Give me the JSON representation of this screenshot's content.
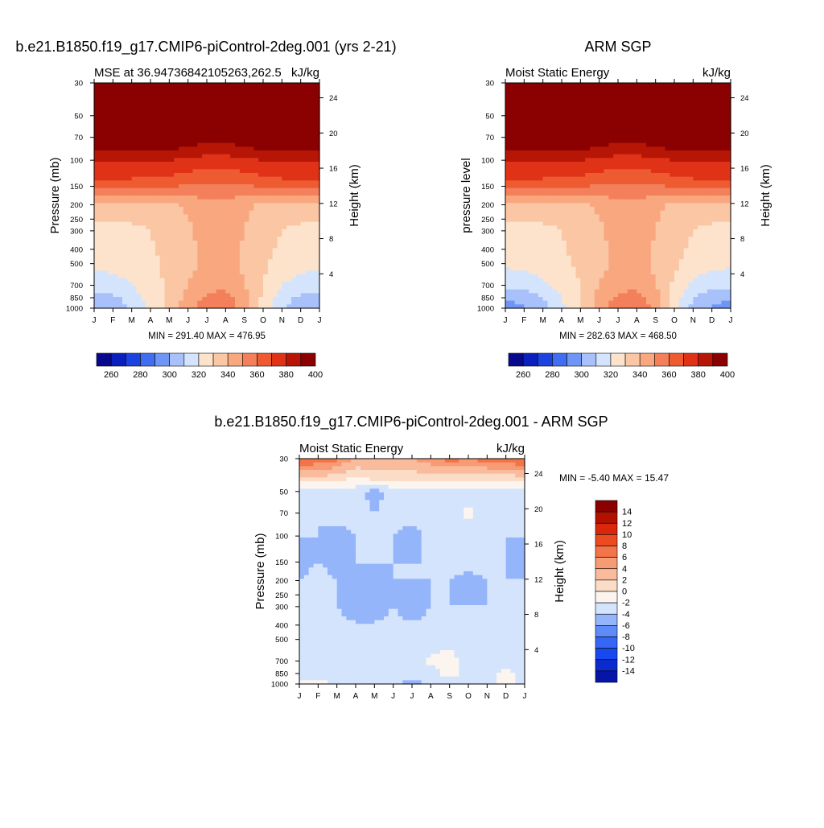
{
  "chart_data": [
    {
      "type": "heatmap",
      "panel": "model",
      "title": "b.e21.B1850.f19_g17.CMIP6-piControl-2deg.001 (yrs 2-21)",
      "left_string": "MSE at 36.94736842105263,262.5",
      "right_string": "kJ/kg",
      "xlabel": "",
      "ylabel": "Pressure (mb)",
      "y2label": "Height (km)",
      "x_ticks": [
        "J",
        "F",
        "M",
        "A",
        "M",
        "J",
        "J",
        "A",
        "S",
        "O",
        "N",
        "D",
        "J"
      ],
      "y_ticks": [
        "30",
        "50",
        "70",
        "100",
        "150",
        "200",
        "250",
        "300",
        "400",
        "500",
        "700",
        "850",
        "1000"
      ],
      "y_values_mb": [
        30,
        50,
        70,
        100,
        150,
        200,
        250,
        300,
        400,
        500,
        700,
        850,
        1000
      ],
      "y2_ticks": [
        "24",
        "20",
        "16",
        "12",
        "8",
        "4"
      ],
      "stats": "MIN = 291.40 MAX = 476.95",
      "contour_levels": [
        250,
        260,
        270,
        280,
        290,
        300,
        310,
        320,
        330,
        340,
        350,
        360,
        370,
        380,
        390,
        400
      ],
      "colorbar_labels": [
        "260",
        "280",
        "300",
        "320",
        "340",
        "360",
        "380",
        "400"
      ],
      "grid_months": [
        "J",
        "F",
        "M",
        "A",
        "M",
        "J",
        "J",
        "A",
        "S",
        "O",
        "N",
        "D",
        "J"
      ],
      "grid_levels_mb": [
        30,
        60,
        80,
        100,
        130,
        160,
        200,
        300,
        500,
        700,
        850,
        1000
      ],
      "values": [
        [
          410,
          410,
          410,
          410,
          410,
          410,
          410,
          410,
          410,
          410,
          410,
          410,
          410
        ],
        [
          400,
          400,
          400,
          400,
          400,
          395,
          395,
          395,
          395,
          400,
          400,
          400,
          400
        ],
        [
          385,
          385,
          385,
          385,
          385,
          380,
          378,
          378,
          380,
          385,
          385,
          385,
          385
        ],
        [
          372,
          372,
          372,
          370,
          370,
          368,
          366,
          366,
          368,
          370,
          372,
          372,
          372
        ],
        [
          362,
          362,
          362,
          360,
          360,
          356,
          355,
          355,
          356,
          360,
          362,
          362,
          362
        ],
        [
          346,
          346,
          346,
          346,
          346,
          346,
          346,
          346,
          346,
          346,
          346,
          346,
          346
        ],
        [
          325,
          325,
          325,
          325,
          328,
          332,
          336,
          336,
          332,
          328,
          325,
          325,
          325
        ],
        [
          318,
          318,
          318,
          320,
          324,
          328,
          334,
          335,
          330,
          325,
          320,
          318,
          318
        ],
        [
          312,
          313,
          315,
          318,
          322,
          327,
          333,
          334,
          328,
          322,
          316,
          313,
          312
        ],
        [
          305,
          306,
          310,
          316,
          322,
          330,
          336,
          338,
          330,
          320,
          310,
          306,
          305
        ],
        [
          296,
          298,
          304,
          314,
          322,
          334,
          342,
          344,
          334,
          318,
          304,
          298,
          296
        ],
        [
          293,
          295,
          302,
          312,
          322,
          336,
          345,
          346,
          336,
          316,
          300,
          295,
          293
        ]
      ]
    },
    {
      "type": "heatmap",
      "panel": "obs",
      "title": "ARM SGP",
      "left_string": "Moist Static Energy",
      "right_string": "kJ/kg",
      "xlabel": "",
      "ylabel": "pressure level",
      "y2label": "Height (km)",
      "x_ticks": [
        "J",
        "F",
        "M",
        "A",
        "M",
        "J",
        "J",
        "A",
        "S",
        "O",
        "N",
        "D",
        "J"
      ],
      "y_ticks": [
        "30",
        "50",
        "70",
        "100",
        "150",
        "200",
        "250",
        "300",
        "400",
        "500",
        "700",
        "850",
        "1000"
      ],
      "y_values_mb": [
        30,
        50,
        70,
        100,
        150,
        200,
        250,
        300,
        400,
        500,
        700,
        850,
        1000
      ],
      "y2_ticks": [
        "24",
        "20",
        "16",
        "12",
        "8",
        "4"
      ],
      "stats": "MIN = 282.63 MAX = 468.50",
      "contour_levels": [
        250,
        260,
        270,
        280,
        290,
        300,
        310,
        320,
        330,
        340,
        350,
        360,
        370,
        380,
        390,
        400
      ],
      "colorbar_labels": [
        "260",
        "280",
        "300",
        "320",
        "340",
        "360",
        "380",
        "400"
      ],
      "grid_months": [
        "J",
        "F",
        "M",
        "A",
        "M",
        "J",
        "J",
        "A",
        "S",
        "O",
        "N",
        "D",
        "J"
      ],
      "grid_levels_mb": [
        30,
        60,
        80,
        100,
        130,
        160,
        200,
        300,
        500,
        700,
        850,
        1000
      ],
      "values": [
        [
          410,
          410,
          410,
          410,
          410,
          410,
          410,
          410,
          410,
          410,
          410,
          410,
          410
        ],
        [
          400,
          400,
          400,
          400,
          400,
          395,
          395,
          395,
          395,
          400,
          400,
          400,
          400
        ],
        [
          385,
          385,
          385,
          385,
          385,
          380,
          378,
          378,
          380,
          385,
          385,
          385,
          385
        ],
        [
          372,
          372,
          372,
          370,
          370,
          368,
          366,
          366,
          368,
          370,
          372,
          372,
          372
        ],
        [
          362,
          362,
          362,
          360,
          360,
          356,
          355,
          355,
          356,
          360,
          362,
          362,
          362
        ],
        [
          346,
          346,
          346,
          346,
          346,
          346,
          346,
          346,
          346,
          346,
          346,
          346,
          346
        ],
        [
          325,
          325,
          325,
          325,
          328,
          332,
          336,
          336,
          332,
          328,
          325,
          325,
          325
        ],
        [
          318,
          318,
          318,
          320,
          324,
          328,
          334,
          335,
          330,
          325,
          320,
          318,
          318
        ],
        [
          312,
          313,
          315,
          318,
          322,
          327,
          333,
          334,
          328,
          322,
          316,
          313,
          312
        ],
        [
          303,
          304,
          308,
          314,
          320,
          330,
          336,
          338,
          330,
          318,
          308,
          304,
          303
        ],
        [
          292,
          294,
          300,
          310,
          320,
          334,
          342,
          344,
          334,
          316,
          300,
          294,
          292
        ],
        [
          286,
          288,
          296,
          308,
          320,
          336,
          346,
          348,
          338,
          314,
          296,
          288,
          286
        ]
      ]
    },
    {
      "type": "heatmap",
      "panel": "difference",
      "title": "b.e21.B1850.f19_g17.CMIP6-piControl-2deg.001 - ARM SGP",
      "left_string": "Moist Static Energy",
      "right_string": "kJ/kg",
      "xlabel": "",
      "ylabel": "Pressure (mb)",
      "y2label": "Height (km)",
      "x_ticks": [
        "J",
        "F",
        "M",
        "A",
        "M",
        "J",
        "J",
        "A",
        "S",
        "O",
        "N",
        "D",
        "J"
      ],
      "y_ticks": [
        "30",
        "50",
        "70",
        "100",
        "150",
        "200",
        "250",
        "300",
        "400",
        "500",
        "700",
        "850",
        "1000"
      ],
      "y_values_mb": [
        30,
        50,
        70,
        100,
        150,
        200,
        250,
        300,
        400,
        500,
        700,
        850,
        1000
      ],
      "y2_ticks": [
        "24",
        "20",
        "16",
        "12",
        "8",
        "4"
      ],
      "stats": "MIN =  -5.40 MAX =  15.47",
      "contour_levels": [
        -14,
        -12,
        -10,
        -8,
        -6,
        -4,
        -2,
        0,
        2,
        4,
        6,
        8,
        10,
        12,
        14
      ],
      "colorbar_labels": [
        "14",
        "12",
        "10",
        "8",
        "6",
        "4",
        "2",
        "0",
        "-2",
        "-4",
        "-6",
        "-8",
        "-10",
        "-12",
        "-14"
      ],
      "grid_months": [
        "J",
        "F",
        "M",
        "A",
        "M",
        "J",
        "J",
        "A",
        "S",
        "O",
        "N",
        "D",
        "J"
      ],
      "grid_levels_mb": [
        25,
        40,
        50,
        70,
        100,
        150,
        200,
        300,
        500,
        700,
        850,
        1000
      ],
      "values": [
        [
          15,
          13,
          12,
          8,
          8,
          8,
          8,
          10,
          13,
          11,
          13,
          13,
          15
        ],
        [
          4,
          4,
          3,
          2,
          3,
          3,
          3,
          3,
          3,
          3,
          3,
          3,
          4
        ],
        [
          -1,
          -1,
          -1,
          -1,
          -3,
          -1,
          -1,
          -1,
          -1,
          -1,
          -1,
          -1,
          -1
        ],
        [
          -1,
          -2,
          -1,
          -1,
          -2,
          -1,
          -1,
          -1,
          -1,
          0.5,
          -1,
          -2,
          -1
        ],
        [
          -2,
          -2,
          -3,
          -2,
          -2,
          -2,
          -3,
          -1,
          -1,
          -1,
          -1,
          -2,
          -2
        ],
        [
          -3,
          -2,
          -3,
          -2,
          -2,
          -2,
          -2,
          -2,
          -1,
          -1,
          -1,
          -2,
          -3
        ],
        [
          -2,
          -1,
          -2,
          -2,
          -3,
          -2,
          -2,
          -2,
          -2,
          -3,
          -2,
          -2,
          -2
        ],
        [
          -2,
          -2,
          -2,
          -3,
          -3,
          -2,
          -3,
          -2,
          -2,
          -2,
          -2,
          -2,
          -2
        ],
        [
          -1,
          -1,
          -1,
          -1,
          -1,
          -1,
          -1,
          -1,
          -1,
          -1,
          -1,
          -1,
          -1
        ],
        [
          -1,
          -1,
          -1,
          -1,
          -1,
          -1,
          -1,
          0.5,
          1,
          -1,
          -1,
          -1,
          -1
        ],
        [
          -1,
          -1,
          -1,
          -1,
          -1,
          -1,
          -1,
          -1,
          1,
          -1,
          -1,
          1,
          -1
        ],
        [
          1,
          1,
          -1,
          -1,
          -1,
          -1,
          -3,
          -1,
          -1,
          -1,
          -1,
          1,
          -1
        ]
      ]
    }
  ]
}
